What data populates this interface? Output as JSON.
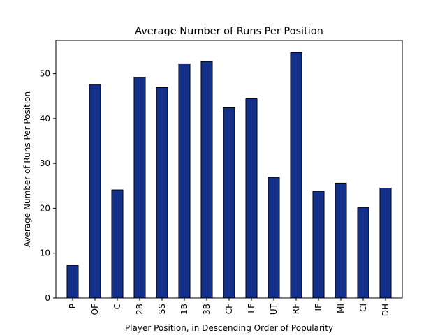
{
  "chart_data": {
    "type": "bar",
    "title": "Average Number of Runs Per Position",
    "xlabel": "Player Position, in Descending Order of Popularity",
    "ylabel": "Average Number of Runs Per Position",
    "categories": [
      "P",
      "OF",
      "C",
      "2B",
      "SS",
      "1B",
      "3B",
      "CF",
      "LF",
      "UT",
      "RF",
      "IF",
      "MI",
      "CI",
      "DH"
    ],
    "values": [
      7.3,
      47.5,
      24.1,
      49.2,
      46.9,
      52.2,
      52.7,
      42.4,
      44.4,
      26.9,
      54.7,
      23.8,
      25.6,
      20.2,
      24.5
    ],
    "ylim": [
      0,
      57.4
    ],
    "yticks": [
      0,
      10,
      20,
      30,
      40,
      50
    ],
    "grid": false,
    "bar_color": "#12308a",
    "bar_edge_color": "#000000"
  }
}
